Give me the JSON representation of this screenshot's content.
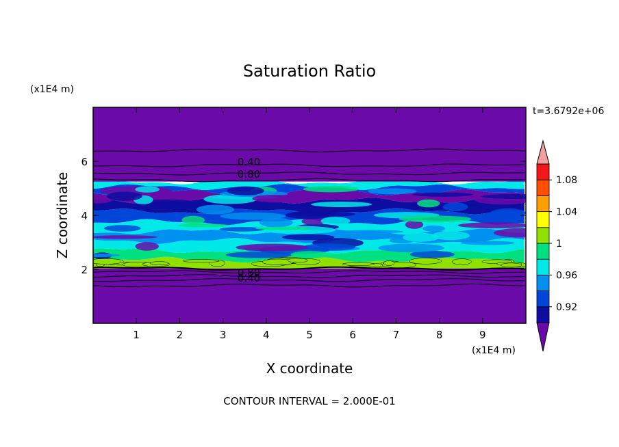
{
  "chart_data": {
    "type": "heatmap",
    "title": "Saturation Ratio",
    "xlabel": "X coordinate",
    "ylabel": "Z coordinate",
    "x_unit": "(x1E4 m)",
    "y_unit": "(x1E4 m)",
    "xlim": [
      0,
      10
    ],
    "ylim": [
      0,
      8
    ],
    "x_ticks": [
      "1",
      "2",
      "3",
      "4",
      "5",
      "6",
      "7",
      "8",
      "9"
    ],
    "y_ticks": [
      "2",
      "4",
      "6"
    ],
    "time_label": "t=3.6792e+06",
    "footer": "CONTOUR INTERVAL = 2.000E-01",
    "contour_labels": [
      "0.40",
      "0.80",
      "0.80",
      "0.40"
    ],
    "colorbar": {
      "tick_labels": [
        "1.08",
        "1.04",
        "1",
        "0.96",
        "0.92"
      ],
      "levels": [
        0.9,
        0.92,
        0.94,
        0.96,
        0.98,
        1.0,
        1.02,
        1.04,
        1.06,
        1.08,
        1.1
      ],
      "colors": [
        "#6a0aa8",
        "#0d0da0",
        "#0046d8",
        "#0090f0",
        "#00e8e8",
        "#00e080",
        "#90e000",
        "#ffff00",
        "#ffa000",
        "#ff5000",
        "#f01818",
        "#f0a0a0"
      ]
    },
    "bands": [
      {
        "z_from": 0.0,
        "z_to": 2.03,
        "color": "#6a0aa8"
      },
      {
        "z_from": 2.03,
        "z_to": 2.35,
        "color": "#90e000"
      },
      {
        "z_from": 2.35,
        "z_to": 2.7,
        "color": "#00e080"
      },
      {
        "z_from": 2.7,
        "z_to": 3.05,
        "color": "#00e8e8"
      },
      {
        "z_from": 3.05,
        "z_to": 3.4,
        "color": "#0090f0"
      },
      {
        "z_from": 3.4,
        "z_to": 3.75,
        "color": "#00e8e8"
      },
      {
        "z_from": 3.75,
        "z_to": 4.15,
        "color": "#0046d8"
      },
      {
        "z_from": 4.15,
        "z_to": 4.55,
        "color": "#0d0da0"
      },
      {
        "z_from": 4.55,
        "z_to": 4.85,
        "color": "#6a0aa8"
      },
      {
        "z_from": 4.85,
        "z_to": 5.05,
        "color": "#0046d8"
      },
      {
        "z_from": 5.05,
        "z_to": 5.25,
        "color": "#00e8e8"
      },
      {
        "z_from": 5.25,
        "z_to": 8.0,
        "color": "#6a0aa8"
      }
    ],
    "contour_lines_z": [
      1.4,
      1.6,
      1.75,
      1.9,
      2.03,
      5.3,
      5.55,
      5.85,
      6.4
    ]
  }
}
